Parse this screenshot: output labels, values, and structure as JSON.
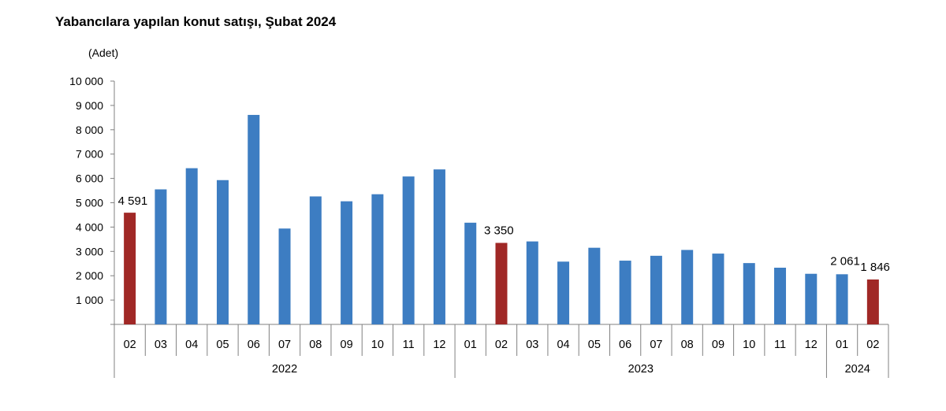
{
  "chart_data": {
    "type": "bar",
    "title": "Yabancılara yapılan konut satışı, Şubat 2024",
    "unit_label": "(Adet)",
    "xlabel": "",
    "ylabel": "",
    "ylim": [
      0,
      10000
    ],
    "yticks": [
      1000,
      2000,
      3000,
      4000,
      5000,
      6000,
      7000,
      8000,
      9000,
      10000
    ],
    "ytick_labels": [
      "1 000",
      "2 000",
      "3 000",
      "4 000",
      "5 000",
      "6 000",
      "7 000",
      "8 000",
      "9 000",
      "10 000"
    ],
    "grid": false,
    "legend": "none",
    "colors": {
      "default": "#3d7dc2",
      "highlight": "#a02826"
    },
    "categories": [
      "02",
      "03",
      "04",
      "05",
      "06",
      "07",
      "08",
      "09",
      "10",
      "11",
      "12",
      "01",
      "02",
      "03",
      "04",
      "05",
      "06",
      "07",
      "08",
      "09",
      "10",
      "11",
      "12",
      "01",
      "02"
    ],
    "values": [
      4591,
      5550,
      6420,
      5930,
      8610,
      3940,
      5260,
      5060,
      5350,
      6080,
      6370,
      4180,
      3350,
      3410,
      2580,
      3150,
      2620,
      2820,
      3060,
      2910,
      2520,
      2330,
      2080,
      2061,
      1846
    ],
    "highlighted": [
      0,
      12,
      24
    ],
    "data_labels": [
      {
        "index": 0,
        "text": "4 591"
      },
      {
        "index": 12,
        "text": "3 350"
      },
      {
        "index": 23,
        "text": "2 061"
      },
      {
        "index": 24,
        "text": "1 846"
      }
    ],
    "year_groups": [
      {
        "label": "2022",
        "start": 0,
        "end": 10
      },
      {
        "label": "2023",
        "start": 11,
        "end": 22
      },
      {
        "label": "2024",
        "start": 23,
        "end": 24
      }
    ]
  }
}
